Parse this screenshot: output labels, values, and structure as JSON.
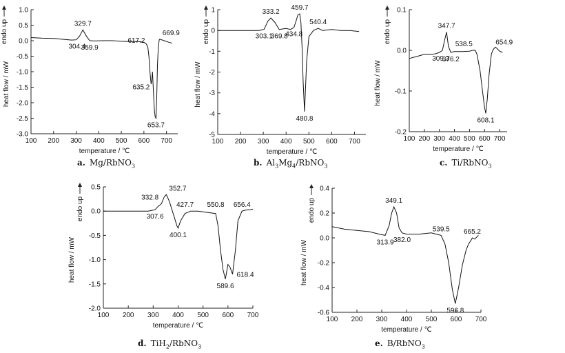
{
  "chart_data": [
    {
      "type": "line",
      "panel": "a",
      "caption_letter": "a.",
      "caption_parts": [
        [
          "Mg/RbNO",
          ""
        ],
        [
          "3",
          "sub"
        ]
      ],
      "xlabel": "temperature / ℃",
      "ylabel": "heat flow / mW",
      "y_direction_label": "endo up",
      "xlim": [
        100,
        750
      ],
      "ylim": [
        -3.0,
        1.0
      ],
      "xticks": [
        100,
        200,
        300,
        400,
        500,
        600,
        700
      ],
      "yticks": [
        -3.0,
        -2.5,
        -2.0,
        -1.5,
        -1.0,
        -0.5,
        0.0,
        0.5,
        1.0
      ],
      "ytick_decimals": 1,
      "series": [
        {
          "x": [
            100,
            150,
            200,
            250,
            280,
            300,
            315,
            329.7,
            345,
            359.9,
            380,
            420,
            460,
            500,
            540,
            580,
            600,
            610,
            617.2,
            622,
            628,
            632,
            635.2,
            638,
            642,
            646,
            650,
            653.7,
            657,
            660,
            664,
            668,
            669.9,
            690,
            710,
            725
          ],
          "y": [
            0.1,
            0.08,
            0.07,
            0.04,
            0.02,
            0.03,
            0.15,
            0.35,
            0.15,
            0.0,
            -0.01,
            0.0,
            0.0,
            -0.02,
            -0.03,
            -0.03,
            -0.05,
            -0.1,
            -0.2,
            -0.5,
            -1.1,
            -1.4,
            -1.25,
            -1.0,
            -1.6,
            -2.2,
            -2.45,
            -2.5,
            -1.8,
            -0.8,
            -0.2,
            0.03,
            0.05,
            0.0,
            -0.05,
            -0.08
          ]
        }
      ],
      "annotations": [
        {
          "text": "329.7",
          "x": 329.7,
          "y": 0.35,
          "pos": "above"
        },
        {
          "text": "304.4",
          "x": 304.4,
          "y": 0.03,
          "pos": "below"
        },
        {
          "text": "359.9",
          "x": 359.9,
          "y": 0.0,
          "pos": "below"
        },
        {
          "text": "617.2",
          "x": 617.2,
          "y": -0.2,
          "pos": "above-left"
        },
        {
          "text": "669.9",
          "x": 669.9,
          "y": 0.05,
          "pos": "above-right"
        },
        {
          "text": "635.2",
          "x": 635.2,
          "y": -1.25,
          "pos": "below-left"
        },
        {
          "text": "653.7",
          "x": 653.7,
          "y": -2.5,
          "pos": "below"
        }
      ]
    },
    {
      "type": "line",
      "panel": "b",
      "caption_letter": "b.",
      "caption_parts": [
        [
          "Al",
          ""
        ],
        [
          "3",
          "sub"
        ],
        [
          "Mg",
          ""
        ],
        [
          "4",
          "sub"
        ],
        [
          "/RbNO",
          ""
        ],
        [
          "3",
          "sub"
        ]
      ],
      "xlabel": "temperature / ℃",
      "ylabel": "heat flow / mW",
      "y_direction_label": "endo up",
      "xlim": [
        100,
        750
      ],
      "ylim": [
        -5,
        1
      ],
      "xticks": [
        100,
        200,
        300,
        400,
        500,
        600,
        700
      ],
      "yticks": [
        -5,
        -4,
        -3,
        -2,
        -1,
        0,
        1
      ],
      "ytick_decimals": 0,
      "series": [
        {
          "x": [
            100,
            150,
            200,
            250,
            280,
            303.1,
            320,
            333.2,
            350,
            369.8,
            400,
            420,
            434.8,
            445,
            452,
            459.7,
            465,
            470,
            475,
            480.8,
            490,
            500,
            520,
            540.4,
            560,
            600,
            640,
            680,
            720
          ],
          "y": [
            0.0,
            0.0,
            0.0,
            0.0,
            0.0,
            0.05,
            0.45,
            0.6,
            0.4,
            0.05,
            0.1,
            0.05,
            0.15,
            0.5,
            0.75,
            0.8,
            0.4,
            -0.8,
            -2.5,
            -3.9,
            -1.5,
            -0.3,
            0.0,
            0.1,
            0.0,
            0.05,
            0.0,
            0.0,
            -0.05
          ]
        }
      ],
      "annotations": [
        {
          "text": "333.2",
          "x": 333.2,
          "y": 0.6,
          "pos": "above"
        },
        {
          "text": "459.7",
          "x": 459.7,
          "y": 0.8,
          "pos": "above"
        },
        {
          "text": "540.4",
          "x": 540.4,
          "y": 0.1,
          "pos": "above"
        },
        {
          "text": "303.1",
          "x": 303.1,
          "y": 0.05,
          "pos": "below"
        },
        {
          "text": "369.8",
          "x": 369.8,
          "y": 0.05,
          "pos": "below"
        },
        {
          "text": "434.8",
          "x": 434.8,
          "y": 0.15,
          "pos": "below"
        },
        {
          "text": "480.8",
          "x": 480.8,
          "y": -3.9,
          "pos": "below"
        }
      ]
    },
    {
      "type": "line",
      "panel": "c",
      "caption_letter": "c.",
      "caption_parts": [
        [
          "Ti/RbNO",
          ""
        ],
        [
          "3",
          "sub"
        ]
      ],
      "xlabel": "temperature / ℃",
      "ylabel": "heat flow / mW",
      "y_direction_label": "endo up",
      "xlim": [
        100,
        750
      ],
      "ylim": [
        -0.2,
        0.1
      ],
      "xticks": [
        100,
        200,
        300,
        400,
        500,
        600,
        700
      ],
      "yticks": [
        -0.2,
        -0.1,
        0.0,
        0.1
      ],
      "ytick_decimals": 1,
      "series": [
        {
          "x": [
            100,
            150,
            200,
            250,
            280,
            300,
            309.3,
            320,
            335,
            347.7,
            360,
            376.2,
            400,
            450,
            500,
            520,
            538.5,
            550,
            570,
            590,
            600,
            608.1,
            618,
            630,
            645,
            654.9,
            662,
            672,
            682,
            700,
            720
          ],
          "y": [
            -0.02,
            -0.015,
            -0.01,
            -0.01,
            -0.008,
            -0.005,
            -0.003,
            0.0,
            0.025,
            0.045,
            0.01,
            -0.005,
            -0.003,
            -0.003,
            -0.002,
            0.0,
            0.0,
            -0.01,
            -0.05,
            -0.11,
            -0.14,
            -0.155,
            -0.12,
            -0.06,
            -0.01,
            0.0,
            0.004,
            0.008,
            0.005,
            -0.002,
            -0.005
          ]
        }
      ],
      "annotations": [
        {
          "text": "347.7",
          "x": 347.7,
          "y": 0.045,
          "pos": "above"
        },
        {
          "text": "309.3",
          "x": 309.3,
          "y": -0.003,
          "pos": "below"
        },
        {
          "text": "376.2",
          "x": 376.2,
          "y": -0.005,
          "pos": "below"
        },
        {
          "text": "538.5",
          "x": 538.5,
          "y": 0.0,
          "pos": "above-left"
        },
        {
          "text": "654.9",
          "x": 654.9,
          "y": 0.004,
          "pos": "above-right"
        },
        {
          "text": "608.1",
          "x": 608.1,
          "y": -0.155,
          "pos": "below"
        }
      ]
    },
    {
      "type": "line",
      "panel": "d",
      "caption_letter": "d.",
      "caption_parts": [
        [
          "TiH",
          ""
        ],
        [
          "2",
          "sub"
        ],
        [
          "/RbNO",
          ""
        ],
        [
          "3",
          "sub"
        ]
      ],
      "xlabel": "temperature / ℃",
      "ylabel": "heat flow / mW",
      "y_direction_label": "endo up",
      "xlim": [
        100,
        700
      ],
      "ylim": [
        -2.0,
        0.5
      ],
      "xticks": [
        100,
        200,
        300,
        400,
        500,
        600,
        700
      ],
      "yticks": [
        -2.0,
        -1.5,
        -1.0,
        -0.5,
        0.0,
        0.5
      ],
      "ytick_decimals": 1,
      "series": [
        {
          "x": [
            100,
            150,
            200,
            250,
            280,
            300,
            307.6,
            320,
            332.8,
            345,
            352.7,
            365,
            380,
            395,
            400.1,
            410,
            427.7,
            450,
            480,
            520,
            550.8,
            560,
            570,
            580,
            589.6,
            600,
            608,
            618.4,
            630,
            640,
            656.4,
            670,
            690,
            700
          ],
          "y": [
            0.0,
            0.0,
            0.0,
            0.0,
            0.0,
            0.02,
            0.03,
            0.1,
            0.15,
            0.3,
            0.34,
            0.2,
            -0.05,
            -0.3,
            -0.35,
            -0.2,
            -0.05,
            0.0,
            0.0,
            -0.03,
            -0.05,
            -0.3,
            -0.8,
            -1.2,
            -1.4,
            -1.1,
            -1.15,
            -1.3,
            -0.8,
            -0.2,
            0.0,
            0.02,
            0.03,
            0.04
          ]
        }
      ],
      "annotations": [
        {
          "text": "352.7",
          "x": 352.7,
          "y": 0.34,
          "pos": "above-right"
        },
        {
          "text": "332.8",
          "x": 332.8,
          "y": 0.15,
          "pos": "above-left"
        },
        {
          "text": "307.6",
          "x": 307.6,
          "y": 0.03,
          "pos": "below"
        },
        {
          "text": "400.1",
          "x": 400.1,
          "y": -0.35,
          "pos": "below"
        },
        {
          "text": "427.7",
          "x": 427.7,
          "y": 0.0,
          "pos": "above"
        },
        {
          "text": "550.8",
          "x": 550.8,
          "y": 0.0,
          "pos": "above"
        },
        {
          "text": "656.4",
          "x": 656.4,
          "y": 0.0,
          "pos": "above"
        },
        {
          "text": "589.6",
          "x": 589.6,
          "y": -1.4,
          "pos": "below"
        },
        {
          "text": "618.4",
          "x": 618.4,
          "y": -1.3,
          "pos": "right"
        }
      ]
    },
    {
      "type": "line",
      "panel": "e",
      "caption_letter": "e.",
      "caption_parts": [
        [
          "B/RbNO",
          ""
        ],
        [
          "3",
          "sub"
        ]
      ],
      "xlabel": "temperature / ℃",
      "ylabel": "heat flow / mW",
      "y_direction_label": "endo up",
      "xlim": [
        100,
        700
      ],
      "ylim": [
        -0.6,
        0.4
      ],
      "xticks": [
        100,
        200,
        300,
        400,
        500,
        600,
        700
      ],
      "yticks": [
        -0.6,
        -0.4,
        -0.2,
        0.0,
        0.2,
        0.4
      ],
      "ytick_decimals": 1,
      "series": [
        {
          "x": [
            100,
            150,
            200,
            250,
            290,
            313.9,
            330,
            340,
            349.1,
            360,
            370,
            382.0,
            400,
            450,
            500,
            520,
            539.5,
            555,
            570,
            585,
            596.8,
            610,
            625,
            640,
            650,
            660,
            665.2,
            675,
            690
          ],
          "y": [
            0.09,
            0.07,
            0.06,
            0.05,
            0.03,
            0.02,
            0.1,
            0.2,
            0.25,
            0.2,
            0.08,
            0.04,
            0.03,
            0.03,
            0.04,
            0.03,
            0.02,
            -0.05,
            -0.2,
            -0.42,
            -0.53,
            -0.4,
            -0.22,
            -0.1,
            -0.05,
            -0.02,
            0.0,
            -0.01,
            0.02
          ]
        }
      ],
      "annotations": [
        {
          "text": "349.1",
          "x": 349.1,
          "y": 0.25,
          "pos": "above"
        },
        {
          "text": "313.9",
          "x": 313.9,
          "y": 0.02,
          "pos": "below"
        },
        {
          "text": "382.0",
          "x": 382.0,
          "y": 0.04,
          "pos": "below"
        },
        {
          "text": "539.5",
          "x": 539.5,
          "y": 0.02,
          "pos": "above"
        },
        {
          "text": "665.2",
          "x": 665.2,
          "y": 0.0,
          "pos": "above"
        },
        {
          "text": "596.8",
          "x": 596.8,
          "y": -0.53,
          "pos": "below"
        }
      ]
    }
  ]
}
